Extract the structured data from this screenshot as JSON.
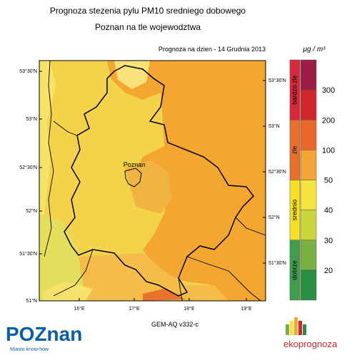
{
  "title": "Prognoza stezenia pylu PM10 sredniego dobowego",
  "subtitle": "Poznan na tle wojewodztwa",
  "forecast_date": "Prognoza na dzien -  14 Grudnia 2013",
  "unit": "μg / m³",
  "map": {
    "city": "Poznan",
    "lat_labels_left": [
      "53°30'N",
      "53°N",
      "52°30'N",
      "52°N",
      "51°30'N",
      "51°N"
    ],
    "lat_labels_right": [
      "53°30'N",
      "53°N",
      "52°30'N",
      "52°N",
      "51°30'N"
    ],
    "lon_labels": [
      "16°E",
      "17°E",
      "18°E",
      "19°E"
    ],
    "model": "GEM-AQ v332-c"
  },
  "legend": {
    "categories": [
      "bardzo zle",
      "zle",
      "srednio",
      "dobrze"
    ],
    "category_colors": [
      "#d8283c",
      "#e8702c",
      "#f6df24",
      "#3f9e4e"
    ],
    "levels": [
      300,
      200,
      100,
      50,
      40,
      30,
      20
    ],
    "colors": [
      "#9b1f44",
      "#d2262f",
      "#e8682a",
      "#f4a532",
      "#f6e43e",
      "#c9d63e",
      "#7bb041",
      "#2a8f42"
    ]
  },
  "footer": {
    "brand": "POZnan",
    "brand_tagline": "Miasto know-how",
    "partner": "ekoprognoza"
  }
}
